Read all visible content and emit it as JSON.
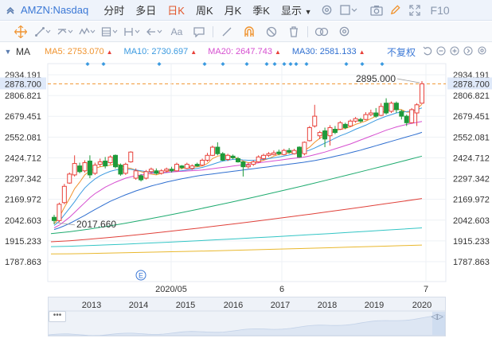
{
  "header": {
    "symbol": "AMZN:Nasdaq",
    "periods": [
      {
        "label": "分时",
        "active": false
      },
      {
        "label": "多日",
        "active": false
      },
      {
        "label": "日K",
        "active": true
      },
      {
        "label": "周K",
        "active": false
      },
      {
        "label": "月K",
        "active": false
      },
      {
        "label": "季K",
        "active": false
      }
    ],
    "display_label": "显示",
    "f10_label": "F10"
  },
  "ma_bar": {
    "prefix": "MA",
    "items": [
      {
        "label": "MA5: 2753.070",
        "color": "#f0932e"
      },
      {
        "label": "MA10: 2730.697",
        "color": "#3b9ae0"
      },
      {
        "label": "MA20: 2647.743",
        "color": "#d64fd0"
      },
      {
        "label": "MA30: 2581.133",
        "color": "#2f6fd0"
      }
    ],
    "adjust_label": "不复权"
  },
  "colors": {
    "up": "#e8413a",
    "down": "#1e9a3a",
    "accent": "#3b78d6",
    "current_price_line": "#f0932e",
    "ma_lines": [
      "#f0932e",
      "#3b9ae0",
      "#d64fd0",
      "#2f6fd0",
      "#1eab6f",
      "#e0413a",
      "#33c5c5",
      "#e9b82e"
    ]
  },
  "chart_data": {
    "type": "candlestick",
    "y_ticks": [
      "2934.191",
      "2878.700",
      "2806.821",
      "2679.451",
      "2552.081",
      "2424.712",
      "2297.342",
      "2169.972",
      "2042.603",
      "1915.233",
      "1787.863"
    ],
    "ylim": [
      1787.863,
      2934.191
    ],
    "current_price": "2878.700",
    "annotations": [
      {
        "label": "2895.000",
        "value": 2895.0
      },
      {
        "label": "2017.660",
        "value": 2017.66
      }
    ],
    "x_labels": [
      "2020/05",
      "6",
      "7"
    ],
    "candles": [
      {
        "o": 2060,
        "c": 2040,
        "h": 2075,
        "l": 2018
      },
      {
        "o": 2040,
        "c": 2140,
        "h": 2150,
        "l": 2030
      },
      {
        "o": 2150,
        "c": 2250,
        "h": 2265,
        "l": 2140
      },
      {
        "o": 2270,
        "c": 2325,
        "h": 2335,
        "l": 2265
      },
      {
        "o": 2320,
        "c": 2390,
        "h": 2440,
        "l": 2310
      },
      {
        "o": 2375,
        "c": 2340,
        "h": 2395,
        "l": 2330
      },
      {
        "o": 2345,
        "c": 2395,
        "h": 2410,
        "l": 2335
      },
      {
        "o": 2405,
        "c": 2320,
        "h": 2440,
        "l": 2300
      },
      {
        "o": 2330,
        "c": 2380,
        "h": 2395,
        "l": 2320
      },
      {
        "o": 2385,
        "c": 2400,
        "h": 2420,
        "l": 2370
      },
      {
        "o": 2405,
        "c": 2375,
        "h": 2430,
        "l": 2360
      },
      {
        "o": 2395,
        "c": 2430,
        "h": 2440,
        "l": 2385
      },
      {
        "o": 2440,
        "c": 2370,
        "h": 2445,
        "l": 2360
      },
      {
        "o": 2380,
        "c": 2325,
        "h": 2390,
        "l": 2315
      },
      {
        "o": 2330,
        "c": 2385,
        "h": 2395,
        "l": 2320
      },
      {
        "o": 2400,
        "c": 2460,
        "h": 2465,
        "l": 2395
      },
      {
        "o": 2300,
        "c": 2345,
        "h": 2360,
        "l": 2290
      },
      {
        "o": 2315,
        "c": 2290,
        "h": 2325,
        "l": 2280
      },
      {
        "o": 2300,
        "c": 2340,
        "h": 2350,
        "l": 2292
      },
      {
        "o": 2340,
        "c": 2355,
        "h": 2365,
        "l": 2330
      },
      {
        "o": 2345,
        "c": 2330,
        "h": 2360,
        "l": 2322
      },
      {
        "o": 2330,
        "c": 2345,
        "h": 2355,
        "l": 2322
      },
      {
        "o": 2345,
        "c": 2355,
        "h": 2365,
        "l": 2335
      },
      {
        "o": 2355,
        "c": 2345,
        "h": 2370,
        "l": 2335
      },
      {
        "o": 2345,
        "c": 2385,
        "h": 2395,
        "l": 2340
      },
      {
        "o": 2375,
        "c": 2365,
        "h": 2380,
        "l": 2355
      },
      {
        "o": 2360,
        "c": 2385,
        "h": 2395,
        "l": 2355
      },
      {
        "o": 2360,
        "c": 2375,
        "h": 2385,
        "l": 2350
      },
      {
        "o": 2385,
        "c": 2375,
        "h": 2395,
        "l": 2370
      },
      {
        "o": 2380,
        "c": 2410,
        "h": 2420,
        "l": 2375
      },
      {
        "o": 2410,
        "c": 2440,
        "h": 2455,
        "l": 2400
      },
      {
        "o": 2440,
        "c": 2490,
        "h": 2500,
        "l": 2435
      },
      {
        "o": 2490,
        "c": 2450,
        "h": 2520,
        "l": 2440
      },
      {
        "o": 2450,
        "c": 2410,
        "h": 2460,
        "l": 2405
      },
      {
        "o": 2415,
        "c": 2440,
        "h": 2450,
        "l": 2405
      },
      {
        "o": 2435,
        "c": 2425,
        "h": 2445,
        "l": 2415
      },
      {
        "o": 2420,
        "c": 2400,
        "h": 2430,
        "l": 2395
      },
      {
        "o": 2400,
        "c": 2370,
        "h": 2405,
        "l": 2310
      },
      {
        "o": 2370,
        "c": 2380,
        "h": 2395,
        "l": 2360
      },
      {
        "o": 2385,
        "c": 2400,
        "h": 2410,
        "l": 2375
      },
      {
        "o": 2400,
        "c": 2430,
        "h": 2440,
        "l": 2395
      },
      {
        "o": 2420,
        "c": 2440,
        "h": 2450,
        "l": 2410
      },
      {
        "o": 2440,
        "c": 2450,
        "h": 2460,
        "l": 2430
      },
      {
        "o": 2445,
        "c": 2455,
        "h": 2470,
        "l": 2440
      },
      {
        "o": 2460,
        "c": 2450,
        "h": 2475,
        "l": 2440
      },
      {
        "o": 2445,
        "c": 2470,
        "h": 2480,
        "l": 2440
      },
      {
        "o": 2470,
        "c": 2460,
        "h": 2485,
        "l": 2450
      },
      {
        "o": 2450,
        "c": 2470,
        "h": 2480,
        "l": 2445
      },
      {
        "o": 2490,
        "c": 2430,
        "h": 2495,
        "l": 2425
      },
      {
        "o": 2450,
        "c": 2520,
        "h": 2525,
        "l": 2440
      },
      {
        "o": 2530,
        "c": 2610,
        "h": 2620,
        "l": 2525
      },
      {
        "o": 2620,
        "c": 2680,
        "h": 2750,
        "l": 2610
      },
      {
        "o": 2560,
        "c": 2580,
        "h": 2590,
        "l": 2540
      },
      {
        "o": 2590,
        "c": 2540,
        "h": 2610,
        "l": 2490
      },
      {
        "o": 2560,
        "c": 2610,
        "h": 2625,
        "l": 2500
      },
      {
        "o": 2600,
        "c": 2580,
        "h": 2620,
        "l": 2570
      },
      {
        "o": 2600,
        "c": 2640,
        "h": 2650,
        "l": 2595
      },
      {
        "o": 2630,
        "c": 2610,
        "h": 2640,
        "l": 2600
      },
      {
        "o": 2620,
        "c": 2650,
        "h": 2660,
        "l": 2615
      },
      {
        "o": 2650,
        "c": 2665,
        "h": 2675,
        "l": 2640
      },
      {
        "o": 2660,
        "c": 2650,
        "h": 2670,
        "l": 2640
      },
      {
        "o": 2660,
        "c": 2690,
        "h": 2705,
        "l": 2655
      },
      {
        "o": 2690,
        "c": 2700,
        "h": 2720,
        "l": 2680
      },
      {
        "o": 2700,
        "c": 2680,
        "h": 2730,
        "l": 2670
      },
      {
        "o": 2685,
        "c": 2740,
        "h": 2760,
        "l": 2680
      },
      {
        "o": 2760,
        "c": 2700,
        "h": 2790,
        "l": 2690
      },
      {
        "o": 2710,
        "c": 2760,
        "h": 2770,
        "l": 2700
      },
      {
        "o": 2760,
        "c": 2720,
        "h": 2770,
        "l": 2700
      },
      {
        "o": 2710,
        "c": 2680,
        "h": 2720,
        "l": 2660
      },
      {
        "o": 2680,
        "c": 2640,
        "h": 2690,
        "l": 2620
      },
      {
        "o": 2640,
        "c": 2720,
        "h": 2730,
        "l": 2635
      },
      {
        "o": 2700,
        "c": 2750,
        "h": 2760,
        "l": 2620
      },
      {
        "o": 2760,
        "c": 2878.7,
        "h": 2895,
        "l": 2755
      }
    ],
    "ma_lines": [
      {
        "name": "MA5",
        "values": [
          2020,
          2060,
          2120,
          2175,
          2235,
          2275,
          2320,
          2345,
          2360,
          2370,
          2375,
          2380,
          2390,
          2380,
          2365,
          2360,
          2350,
          2340,
          2330,
          2325,
          2320,
          2330,
          2340,
          2348,
          2355,
          2360,
          2365,
          2368,
          2370,
          2375,
          2390,
          2420,
          2435,
          2440,
          2440,
          2430,
          2420,
          2405,
          2395,
          2395,
          2400,
          2410,
          2420,
          2435,
          2445,
          2450,
          2455,
          2460,
          2462,
          2470,
          2490,
          2520,
          2545,
          2560,
          2575,
          2590,
          2600,
          2605,
          2615,
          2630,
          2640,
          2650,
          2665,
          2680,
          2700,
          2715,
          2720,
          2725,
          2720,
          2705,
          2705,
          2725,
          2753.07
        ]
      },
      {
        "name": "MA10",
        "values": [
          2010,
          2035,
          2075,
          2115,
          2155,
          2200,
          2240,
          2270,
          2295,
          2315,
          2330,
          2342,
          2350,
          2355,
          2355,
          2354,
          2350,
          2345,
          2340,
          2335,
          2332,
          2332,
          2334,
          2338,
          2342,
          2346,
          2350,
          2355,
          2360,
          2366,
          2375,
          2385,
          2395,
          2405,
          2410,
          2415,
          2415,
          2412,
          2410,
          2410,
          2412,
          2415,
          2420,
          2425,
          2430,
          2436,
          2442,
          2450,
          2455,
          2462,
          2472,
          2485,
          2500,
          2515,
          2530,
          2545,
          2560,
          2572,
          2585,
          2600,
          2612,
          2625,
          2640,
          2655,
          2668,
          2680,
          2690,
          2700,
          2705,
          2708,
          2712,
          2720,
          2730.697
        ]
      },
      {
        "name": "MA20",
        "values": [
          1995,
          2012,
          2035,
          2060,
          2090,
          2120,
          2150,
          2180,
          2205,
          2225,
          2245,
          2260,
          2275,
          2288,
          2300,
          2308,
          2315,
          2320,
          2325,
          2330,
          2332,
          2334,
          2336,
          2338,
          2340,
          2342,
          2344,
          2346,
          2348,
          2350,
          2354,
          2358,
          2362,
          2366,
          2370,
          2374,
          2378,
          2382,
          2386,
          2390,
          2394,
          2398,
          2402,
          2406,
          2410,
          2414,
          2418,
          2422,
          2426,
          2430,
          2436,
          2444,
          2452,
          2460,
          2470,
          2480,
          2490,
          2500,
          2510,
          2522,
          2534,
          2546,
          2558,
          2570,
          2582,
          2594,
          2604,
          2614,
          2622,
          2630,
          2636,
          2642,
          2647.743
        ]
      },
      {
        "name": "MA30",
        "values": [
          1985,
          1995,
          2008,
          2022,
          2038,
          2055,
          2072,
          2090,
          2108,
          2125,
          2142,
          2158,
          2172,
          2185,
          2198,
          2210,
          2222,
          2232,
          2242,
          2252,
          2260,
          2268,
          2276,
          2283,
          2290,
          2296,
          2302,
          2308,
          2313,
          2318,
          2322,
          2326,
          2330,
          2334,
          2338,
          2342,
          2346,
          2350,
          2354,
          2358,
          2362,
          2366,
          2370,
          2374,
          2378,
          2382,
          2386,
          2390,
          2394,
          2398,
          2403,
          2408,
          2414,
          2420,
          2427,
          2434,
          2441,
          2448,
          2456,
          2464,
          2472,
          2481,
          2490,
          2499,
          2508,
          2517,
          2526,
          2535,
          2544,
          2553,
          2562,
          2571,
          2581.133
        ]
      },
      {
        "name": "MA60",
        "start": 1960,
        "end": 2435
      },
      {
        "name": "MA120",
        "start": 1910,
        "end": 2175
      },
      {
        "name": "MA250",
        "start": 1880,
        "end": 1995
      },
      {
        "name": "MA500",
        "start": 1835,
        "end": 1890
      }
    ]
  },
  "navigator": {
    "year_labels": [
      "2013",
      "2014",
      "2015",
      "2016",
      "2017",
      "2018",
      "2019",
      "2020"
    ],
    "handle_label": "•••",
    "right_handle_label": "◁▷"
  }
}
